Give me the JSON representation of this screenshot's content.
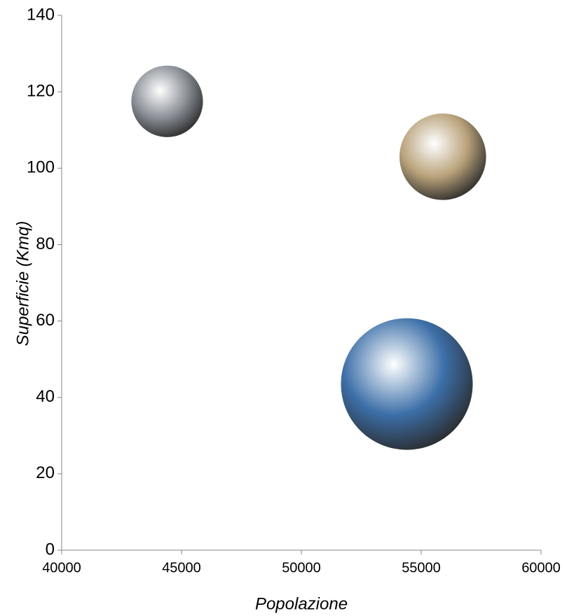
{
  "chart_data": {
    "type": "bubble",
    "x_label": "Popolazione",
    "y_label": "Superficie (Kmq)",
    "series": [
      {
        "x": [
          44400,
          55900,
          54400
        ],
        "values": [
          117.5,
          103,
          43.5
        ],
        "sizes": [
          26,
          38,
          88
        ],
        "colors": [
          "#8a8f96",
          "#b9a27a",
          "#3c6fa8"
        ]
      }
    ],
    "xlim": [
      40000,
      60000
    ],
    "xticks": [
      40000,
      45000,
      50000,
      55000,
      60000
    ],
    "ylim": [
      0,
      140
    ],
    "yticks": [
      0,
      20,
      40,
      60,
      80,
      100,
      120,
      140
    ],
    "grid": false
  }
}
